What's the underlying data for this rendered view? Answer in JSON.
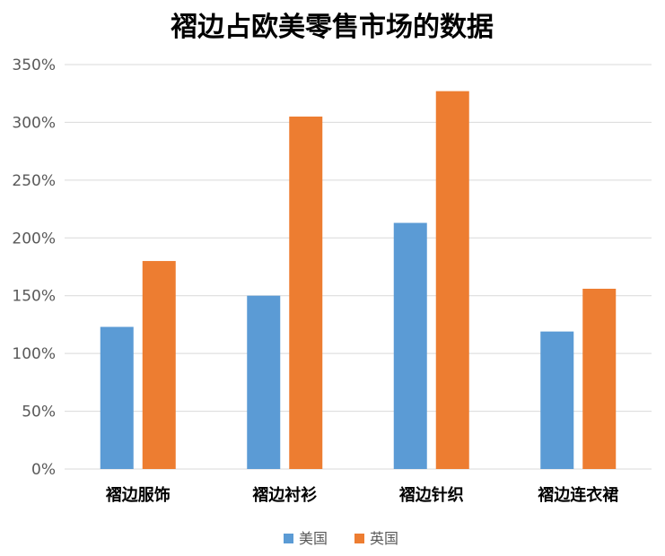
{
  "chart_data": {
    "type": "bar",
    "title": "褶边占欧美零售市场的数据",
    "categories": [
      "褶边服饰",
      "褶边衬衫",
      "褶边针织",
      "褶边连衣裙"
    ],
    "series": [
      {
        "name": "美国",
        "color": "#5b9bd5",
        "values": [
          123,
          150,
          213,
          119
        ]
      },
      {
        "name": "英国",
        "color": "#ed7d31",
        "values": [
          180,
          305,
          327,
          156
        ]
      }
    ],
    "ylim": [
      0,
      350
    ],
    "y_ticks": [
      "0%",
      "50%",
      "100%",
      "150%",
      "200%",
      "250%",
      "300%",
      "350%"
    ],
    "y_tick_values": [
      0,
      50,
      100,
      150,
      200,
      250,
      300,
      350
    ],
    "grid": true,
    "legend_position": "bottom"
  }
}
